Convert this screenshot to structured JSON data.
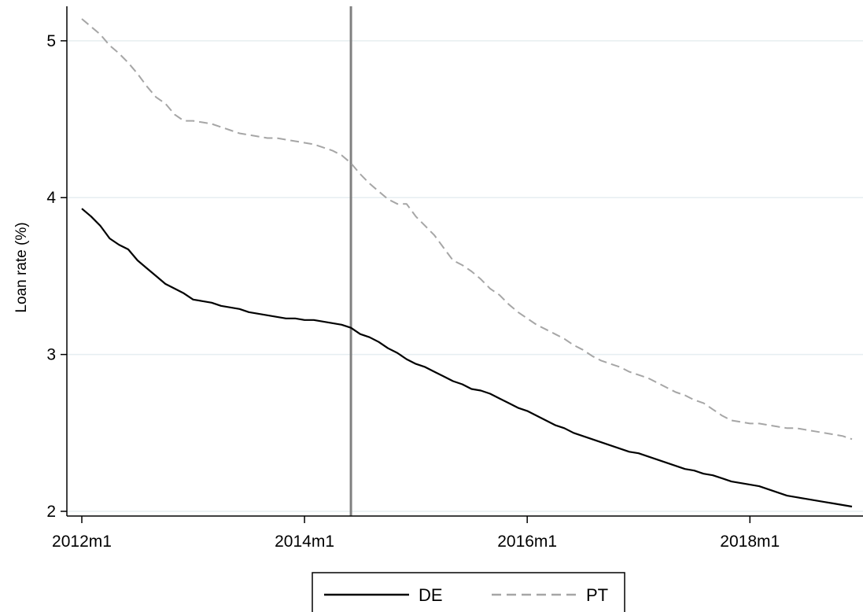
{
  "chart_data": {
    "type": "line",
    "title": "",
    "xlabel": "",
    "ylabel": "Loan rate (%)",
    "x_ticks": [
      "2012m1",
      "2014m1",
      "2016m1",
      "2018m1"
    ],
    "y_ticks": [
      "2",
      "3",
      "4",
      "5"
    ],
    "xlim": [
      "2012m1",
      "2018m12"
    ],
    "ylim": [
      1.97,
      5.22
    ],
    "grid": "horizontal",
    "legend_position": "bottom",
    "reference_line": {
      "x": "2014m6"
    },
    "x": [
      "2012m1",
      "2012m2",
      "2012m3",
      "2012m4",
      "2012m5",
      "2012m6",
      "2012m7",
      "2012m8",
      "2012m9",
      "2012m10",
      "2012m11",
      "2012m12",
      "2013m1",
      "2013m2",
      "2013m3",
      "2013m4",
      "2013m5",
      "2013m6",
      "2013m7",
      "2013m8",
      "2013m9",
      "2013m10",
      "2013m11",
      "2013m12",
      "2014m1",
      "2014m2",
      "2014m3",
      "2014m4",
      "2014m5",
      "2014m6",
      "2014m7",
      "2014m8",
      "2014m9",
      "2014m10",
      "2014m11",
      "2014m12",
      "2015m1",
      "2015m2",
      "2015m3",
      "2015m4",
      "2015m5",
      "2015m6",
      "2015m7",
      "2015m8",
      "2015m9",
      "2015m10",
      "2015m11",
      "2015m12",
      "2016m1",
      "2016m2",
      "2016m3",
      "2016m4",
      "2016m5",
      "2016m6",
      "2016m7",
      "2016m8",
      "2016m9",
      "2016m10",
      "2016m11",
      "2016m12",
      "2017m1",
      "2017m2",
      "2017m3",
      "2017m4",
      "2017m5",
      "2017m6",
      "2017m7",
      "2017m8",
      "2017m9",
      "2017m10",
      "2017m11",
      "2017m12",
      "2018m1",
      "2018m2",
      "2018m3",
      "2018m4",
      "2018m5",
      "2018m6",
      "2018m7",
      "2018m8",
      "2018m9",
      "2018m10",
      "2018m11",
      "2018m12"
    ],
    "series": [
      {
        "name": "DE",
        "color": "#000000",
        "style": "solid",
        "values": [
          3.93,
          3.88,
          3.82,
          3.74,
          3.7,
          3.67,
          3.6,
          3.55,
          3.5,
          3.45,
          3.42,
          3.39,
          3.35,
          3.34,
          3.33,
          3.31,
          3.3,
          3.29,
          3.27,
          3.26,
          3.25,
          3.24,
          3.23,
          3.23,
          3.22,
          3.22,
          3.21,
          3.2,
          3.19,
          3.17,
          3.13,
          3.11,
          3.08,
          3.04,
          3.01,
          2.97,
          2.94,
          2.92,
          2.89,
          2.86,
          2.83,
          2.81,
          2.78,
          2.77,
          2.75,
          2.72,
          2.69,
          2.66,
          2.64,
          2.61,
          2.58,
          2.55,
          2.53,
          2.5,
          2.48,
          2.46,
          2.44,
          2.42,
          2.4,
          2.38,
          2.37,
          2.35,
          2.33,
          2.31,
          2.29,
          2.27,
          2.26,
          2.24,
          2.23,
          2.21,
          2.19,
          2.18,
          2.17,
          2.16,
          2.14,
          2.12,
          2.1,
          2.09,
          2.08,
          2.07,
          2.06,
          2.05,
          2.04,
          2.03
        ]
      },
      {
        "name": "PT",
        "color": "#a6a6a6",
        "style": "dashed",
        "values": [
          5.14,
          5.09,
          5.04,
          4.97,
          4.92,
          4.86,
          4.79,
          4.71,
          4.64,
          4.6,
          4.53,
          4.49,
          4.49,
          4.48,
          4.47,
          4.45,
          4.43,
          4.41,
          4.4,
          4.39,
          4.38,
          4.38,
          4.37,
          4.36,
          4.35,
          4.34,
          4.32,
          4.3,
          4.27,
          4.22,
          4.15,
          4.09,
          4.04,
          3.99,
          3.96,
          3.96,
          3.88,
          3.82,
          3.76,
          3.68,
          3.6,
          3.57,
          3.53,
          3.48,
          3.42,
          3.38,
          3.32,
          3.27,
          3.23,
          3.19,
          3.16,
          3.13,
          3.1,
          3.06,
          3.03,
          2.99,
          2.96,
          2.94,
          2.92,
          2.89,
          2.87,
          2.85,
          2.82,
          2.79,
          2.76,
          2.74,
          2.71,
          2.69,
          2.65,
          2.61,
          2.58,
          2.57,
          2.56,
          2.56,
          2.55,
          2.54,
          2.53,
          2.53,
          2.52,
          2.51,
          2.5,
          2.49,
          2.48,
          2.46
        ]
      }
    ]
  }
}
